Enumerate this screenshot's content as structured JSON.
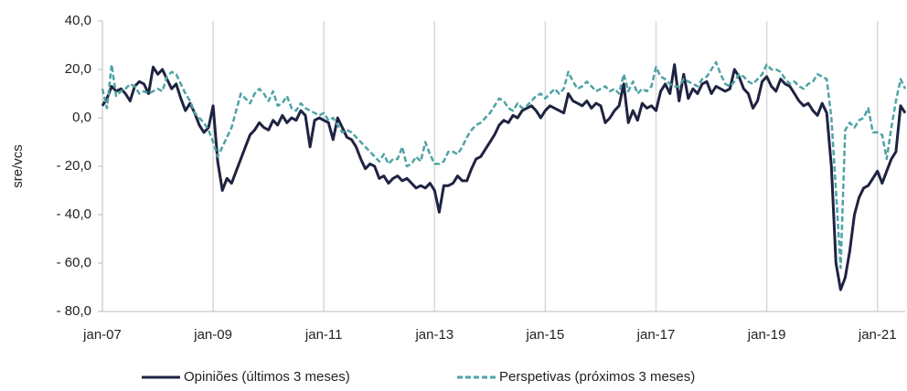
{
  "chart_data": {
    "type": "line",
    "y_label": "sre/vcs",
    "categories": [
      "jan-07",
      null,
      null,
      null,
      null,
      null,
      null,
      null,
      null,
      null,
      null,
      null,
      null,
      null,
      null,
      null,
      null,
      null,
      null,
      null,
      null,
      null,
      null,
      null,
      "jan-09",
      null,
      null,
      null,
      null,
      null,
      null,
      null,
      null,
      null,
      null,
      null,
      null,
      null,
      null,
      null,
      null,
      null,
      null,
      null,
      null,
      null,
      null,
      null,
      "jan-11",
      null,
      null,
      null,
      null,
      null,
      null,
      null,
      null,
      null,
      null,
      null,
      null,
      null,
      null,
      null,
      null,
      null,
      null,
      null,
      null,
      null,
      null,
      null,
      "jan-13",
      null,
      null,
      null,
      null,
      null,
      null,
      null,
      null,
      null,
      null,
      null,
      null,
      null,
      null,
      null,
      null,
      null,
      null,
      null,
      null,
      null,
      null,
      null,
      "jan-15",
      null,
      null,
      null,
      null,
      null,
      null,
      null,
      null,
      null,
      null,
      null,
      null,
      null,
      null,
      null,
      null,
      null,
      null,
      null,
      null,
      null,
      null,
      null,
      "jan-17",
      null,
      null,
      null,
      null,
      null,
      null,
      null,
      null,
      null,
      null,
      null,
      null,
      null,
      null,
      null,
      null,
      null,
      null,
      null,
      null,
      null,
      null,
      null,
      "jan-19",
      null,
      null,
      null,
      null,
      null,
      null,
      null,
      null,
      null,
      null,
      null,
      null,
      null,
      null,
      null,
      null,
      null,
      null,
      null,
      null,
      null,
      null,
      null,
      "jan-21",
      null,
      null,
      null,
      null,
      null,
      null
    ],
    "series": [
      {
        "name": "Opiniões (últimos 3 meses)",
        "color": "#1f2341",
        "dash": false,
        "values": [
          5,
          8,
          13,
          11,
          12,
          10,
          7,
          13,
          15,
          14,
          10,
          21,
          18,
          20,
          16,
          12,
          14,
          8,
          3,
          6,
          2,
          -3,
          -6,
          -4,
          5,
          -18,
          -30,
          -25,
          -27,
          -22,
          -17,
          -12,
          -7,
          -5,
          -2,
          -4,
          -5,
          -1,
          -3,
          1,
          -2,
          0,
          -1,
          3,
          1,
          -12,
          -1,
          0,
          -1,
          -2,
          -9,
          0,
          -4,
          -8,
          -9,
          -12,
          -17,
          -21,
          -19,
          -20,
          -25,
          -24,
          -27,
          -25,
          -24,
          -26,
          -25,
          -27,
          -29,
          -28,
          -29,
          -27,
          -30,
          -39,
          -28,
          -28,
          -27,
          -24,
          -26,
          -26,
          -21,
          -17,
          -16,
          -13,
          -10,
          -7,
          -3,
          -1,
          -2,
          1,
          0,
          3,
          4,
          5,
          3,
          0,
          3,
          5,
          4,
          3,
          2,
          10,
          7,
          6,
          5,
          7,
          4,
          6,
          5,
          -2,
          0,
          3,
          5,
          14,
          -2,
          3,
          -1,
          6,
          4,
          5,
          3,
          11,
          14,
          10,
          22,
          7,
          18,
          8,
          12,
          10,
          14,
          15,
          10,
          13,
          12,
          11,
          12,
          20,
          17,
          12,
          10,
          4,
          7,
          15,
          17,
          13,
          11,
          16,
          14,
          13,
          10,
          7,
          5,
          6,
          3,
          1,
          6,
          2,
          -20,
          -60,
          -71,
          -66,
          -55,
          -40,
          -33,
          -29,
          -28,
          -25,
          -22,
          -27,
          -22,
          -17,
          -14,
          5,
          2
        ]
      },
      {
        "name": "Perspetivas (próximos 3 meses)",
        "color": "#4fa3a5",
        "dash": true,
        "values": [
          12,
          4,
          22,
          9,
          11,
          12,
          14,
          13,
          10,
          11,
          10,
          11,
          12,
          11,
          17,
          19,
          18,
          14,
          10,
          7,
          2,
          0,
          -2,
          -5,
          -10,
          -16,
          -12,
          -8,
          -4,
          3,
          10,
          8,
          6,
          10,
          12,
          10,
          7,
          11,
          5,
          6,
          9,
          4,
          3,
          6,
          4,
          3,
          2,
          1,
          2,
          -1,
          0,
          -3,
          -6,
          -5,
          -6,
          -8,
          -10,
          -12,
          -14,
          -16,
          -18,
          -15,
          -19,
          -17,
          -17,
          -12,
          -20,
          -19,
          -16,
          -18,
          -10,
          -15,
          -19,
          -19,
          -18,
          -14,
          -14,
          -15,
          -12,
          -8,
          -5,
          -3,
          -2,
          0,
          2,
          5,
          8,
          7,
          4,
          3,
          6,
          4,
          5,
          7,
          9,
          10,
          8,
          10,
          12,
          10,
          12,
          19,
          15,
          12,
          13,
          15,
          13,
          11,
          12,
          13,
          11,
          12,
          10,
          18,
          11,
          15,
          10,
          12,
          11,
          13,
          21,
          17,
          16,
          14,
          13,
          13,
          16,
          15,
          14,
          13,
          16,
          17,
          20,
          23,
          18,
          14,
          13,
          15,
          18,
          17,
          15,
          14,
          16,
          18,
          22,
          20,
          20,
          19,
          16,
          14,
          15,
          13,
          12,
          14,
          15,
          18,
          17,
          16,
          0,
          -30,
          -62,
          -5,
          -2,
          -4,
          -1,
          0,
          4,
          -6,
          -6,
          -7,
          -17,
          -4,
          7,
          16,
          12
        ]
      }
    ],
    "ylim": [
      -80,
      40
    ],
    "yticks": [
      {
        "value": -80,
        "label": "- 80,0"
      },
      {
        "value": -60,
        "label": "- 60,0"
      },
      {
        "value": -40,
        "label": "- 40,0"
      },
      {
        "value": -20,
        "label": "- 20,0"
      },
      {
        "value": 0,
        "label": "0,0"
      },
      {
        "value": 20,
        "label": "20,0"
      },
      {
        "value": 40,
        "label": "40,0"
      }
    ],
    "grid": "x",
    "legend": "bottom"
  }
}
